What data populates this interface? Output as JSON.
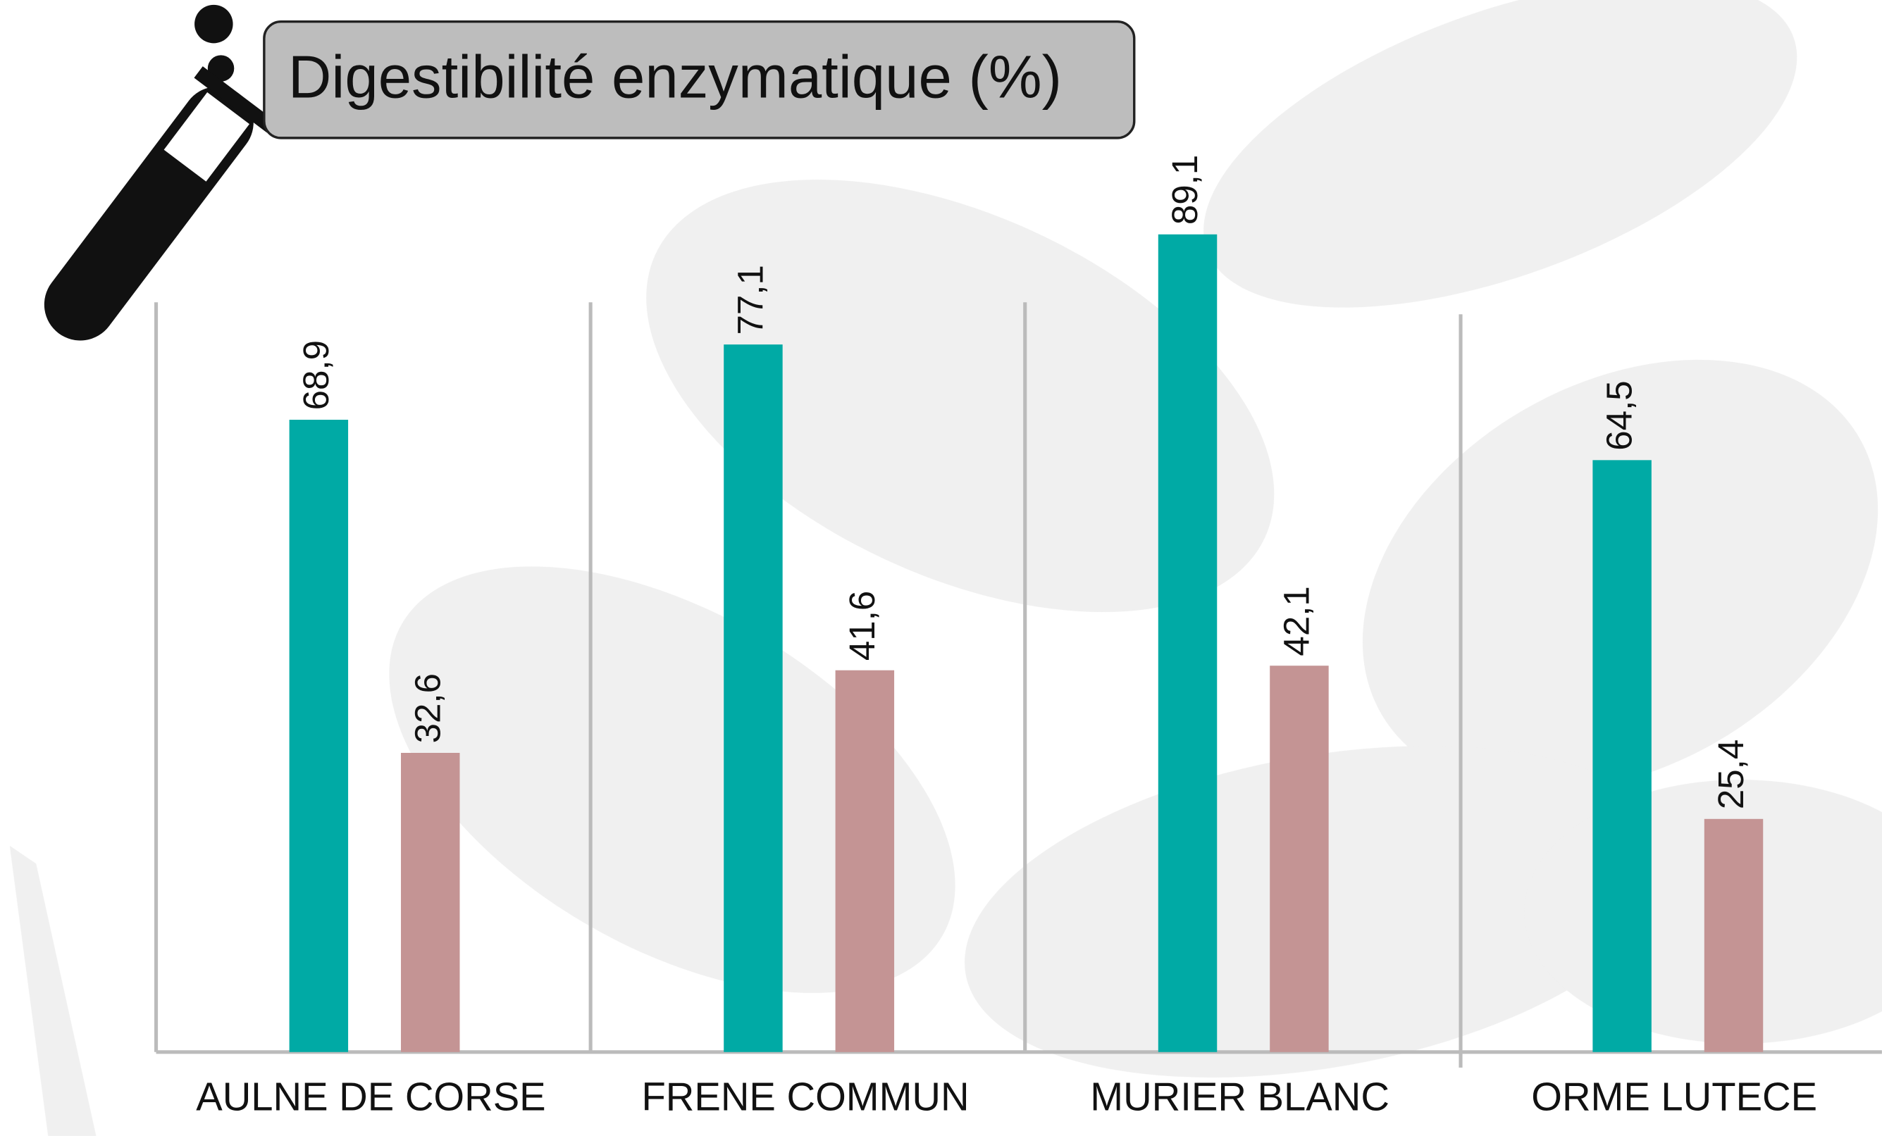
{
  "chart_data": {
    "type": "bar",
    "title": "Digestibilité enzymatique (%)",
    "categories": [
      "AULNE DE CORSE",
      "FRENE COMMUN",
      "MURIER BLANC",
      "ORME LUTECE"
    ],
    "series": [
      {
        "color": "#00aaa5",
        "values": [
          68.9,
          77.1,
          89.1,
          64.5
        ],
        "value_labels": [
          "68,9",
          "77,1",
          "89,1",
          "64,5"
        ]
      },
      {
        "color": "#c49494",
        "values": [
          32.6,
          41.6,
          42.1,
          25.4
        ],
        "value_labels": [
          "32,6",
          "41,6",
          "42,1",
          "25,4"
        ]
      }
    ],
    "ylim": [
      0,
      100
    ]
  }
}
